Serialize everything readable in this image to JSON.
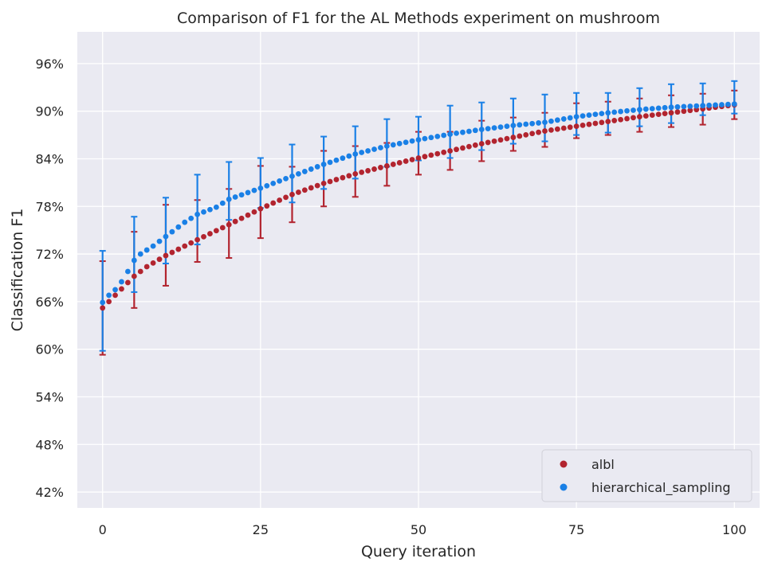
{
  "chart_data": {
    "type": "scatter",
    "title": "Comparison of F1 for the AL Methods experiment on mushroom",
    "xlabel": "Query iteration",
    "ylabel": "Classification F1",
    "xlim": [
      -4,
      104
    ],
    "ylim": [
      0.4,
      1.0
    ],
    "xticks": [
      0,
      25,
      50,
      75,
      100
    ],
    "yticks": [
      0.42,
      0.48,
      0.54,
      0.6,
      0.66,
      0.72,
      0.78,
      0.84,
      0.9,
      0.96
    ],
    "ytick_labels": [
      "42%",
      "48%",
      "54%",
      "60%",
      "66%",
      "72%",
      "78%",
      "84%",
      "90%",
      "96%"
    ],
    "grid": true,
    "legend": "bottom-right",
    "background": "#eaeaf2",
    "series": [
      {
        "name": "albl",
        "color": "#b2242f",
        "anchors": [
          [
            0,
            0.652
          ],
          [
            1,
            0.66
          ],
          [
            2,
            0.668
          ],
          [
            3,
            0.676
          ],
          [
            4,
            0.684
          ],
          [
            5,
            0.692
          ],
          [
            7,
            0.704
          ],
          [
            10,
            0.718
          ],
          [
            13,
            0.73
          ],
          [
            15,
            0.738
          ],
          [
            20,
            0.757
          ],
          [
            25,
            0.777
          ],
          [
            30,
            0.795
          ],
          [
            35,
            0.809
          ],
          [
            40,
            0.821
          ],
          [
            45,
            0.831
          ],
          [
            50,
            0.841
          ],
          [
            55,
            0.85
          ],
          [
            60,
            0.859
          ],
          [
            65,
            0.867
          ],
          [
            70,
            0.875
          ],
          [
            75,
            0.881
          ],
          [
            80,
            0.887
          ],
          [
            85,
            0.893
          ],
          [
            90,
            0.898
          ],
          [
            95,
            0.903
          ],
          [
            100,
            0.908
          ]
        ],
        "error_x": [
          0,
          5,
          10,
          15,
          20,
          25,
          30,
          35,
          40,
          45,
          50,
          55,
          60,
          65,
          70,
          75,
          80,
          85,
          90,
          95,
          100
        ],
        "error_low": [
          0.593,
          0.652,
          0.68,
          0.71,
          0.715,
          0.74,
          0.76,
          0.78,
          0.792,
          0.806,
          0.82,
          0.826,
          0.837,
          0.85,
          0.855,
          0.866,
          0.87,
          0.874,
          0.88,
          0.883,
          0.89
        ],
        "error_high": [
          0.711,
          0.748,
          0.782,
          0.788,
          0.802,
          0.831,
          0.83,
          0.85,
          0.856,
          0.86,
          0.874,
          0.874,
          0.888,
          0.892,
          0.898,
          0.91,
          0.912,
          0.916,
          0.92,
          0.922,
          0.926
        ]
      },
      {
        "name": "hierarchical_sampling",
        "color": "#1a80e6",
        "anchors": [
          [
            0,
            0.659
          ],
          [
            1,
            0.668
          ],
          [
            2,
            0.675
          ],
          [
            3,
            0.685
          ],
          [
            4,
            0.698
          ],
          [
            5,
            0.712
          ],
          [
            6,
            0.72
          ],
          [
            8,
            0.73
          ],
          [
            10,
            0.742
          ],
          [
            13,
            0.76
          ],
          [
            15,
            0.77
          ],
          [
            18,
            0.779
          ],
          [
            20,
            0.789
          ],
          [
            25,
            0.803
          ],
          [
            30,
            0.818
          ],
          [
            35,
            0.833
          ],
          [
            40,
            0.846
          ],
          [
            45,
            0.856
          ],
          [
            50,
            0.864
          ],
          [
            55,
            0.871
          ],
          [
            60,
            0.877
          ],
          [
            65,
            0.882
          ],
          [
            70,
            0.886
          ],
          [
            75,
            0.893
          ],
          [
            80,
            0.898
          ],
          [
            85,
            0.902
          ],
          [
            90,
            0.905
          ],
          [
            95,
            0.907
          ],
          [
            100,
            0.909
          ]
        ],
        "error_x": [
          0,
          5,
          10,
          15,
          20,
          25,
          30,
          35,
          40,
          45,
          50,
          55,
          60,
          65,
          70,
          75,
          80,
          85,
          90,
          95,
          100
        ],
        "error_low": [
          0.598,
          0.672,
          0.708,
          0.732,
          0.763,
          0.778,
          0.785,
          0.802,
          0.815,
          0.83,
          0.838,
          0.841,
          0.851,
          0.859,
          0.862,
          0.87,
          0.873,
          0.881,
          0.885,
          0.895,
          0.897
        ],
        "error_high": [
          0.724,
          0.767,
          0.791,
          0.82,
          0.836,
          0.841,
          0.858,
          0.868,
          0.881,
          0.89,
          0.893,
          0.907,
          0.911,
          0.916,
          0.921,
          0.923,
          0.923,
          0.929,
          0.934,
          0.935,
          0.938
        ]
      }
    ]
  }
}
